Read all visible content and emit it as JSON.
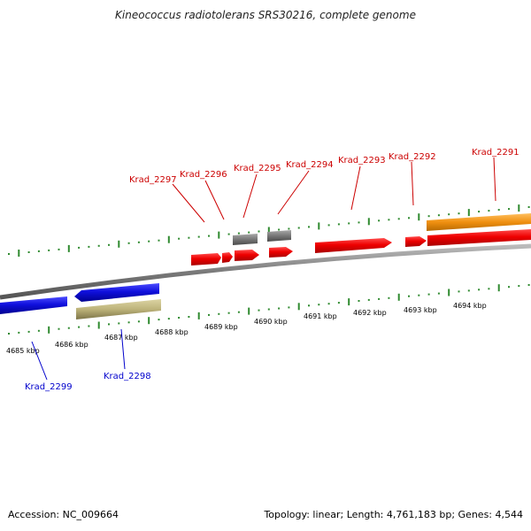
{
  "title": "Kineococcus radiotolerans SRS30216, complete genome",
  "footer": {
    "accession": "Accession: NC_009664",
    "summary": "Topology: linear; Length: 4,761,183 bp; Genes: 4,544"
  },
  "colors": {
    "forward_gene": "#ee0000",
    "reverse_gene": "#1010dd",
    "rna_gene": "#777777",
    "orange_gene": "#f09010",
    "khaki_gene": "#bdb37a",
    "tick": "#2f8a2f",
    "backbone": "#8a8a8a",
    "forward_label": "#cc0000",
    "reverse_label": "#0000cc"
  },
  "scale_labels": [
    "4685 kbp",
    "4686 kbp",
    "4687 kbp",
    "4688 kbp",
    "4689 kbp",
    "4690 kbp",
    "4691 kbp",
    "4692 kbp",
    "4693 kbp",
    "4694 kbp"
  ],
  "forward_labels": [
    "Krad_2297",
    "Krad_2296",
    "Krad_2295",
    "Krad_2294",
    "Krad_2293",
    "Krad_2292",
    "Krad_2291"
  ],
  "reverse_labels": [
    "Krad_2299",
    "Krad_2298"
  ]
}
